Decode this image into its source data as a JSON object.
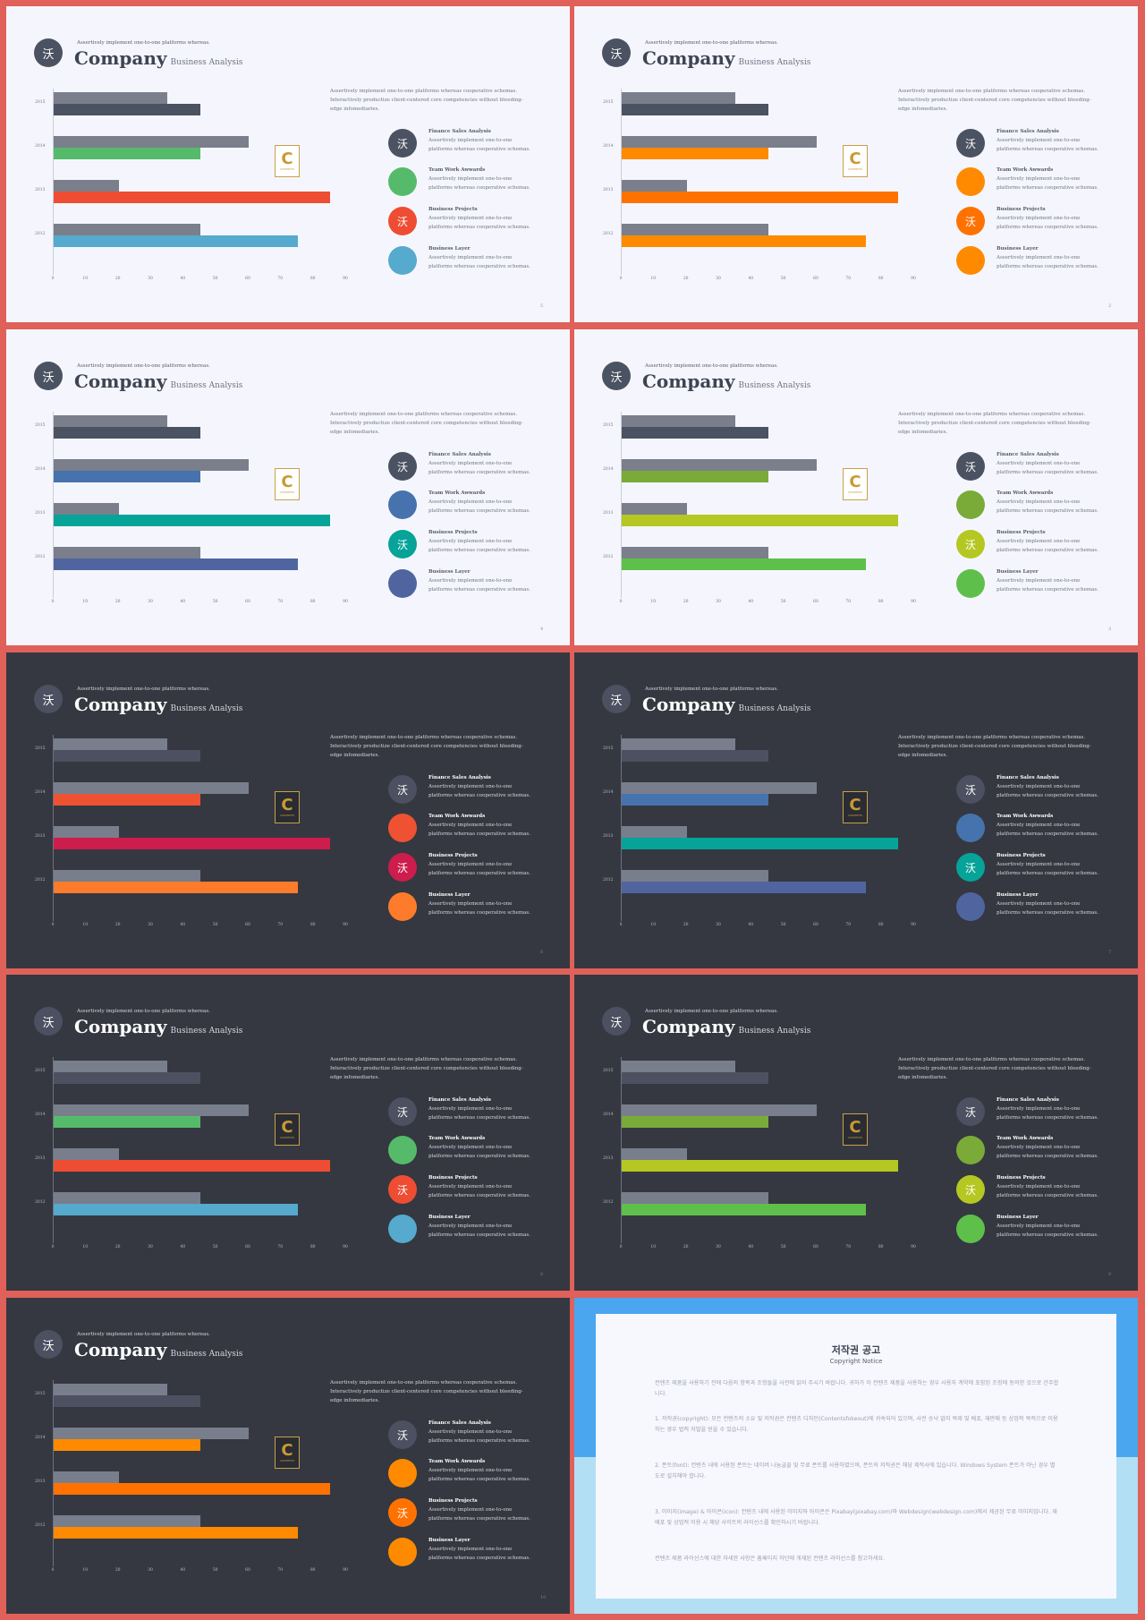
{
  "slide_template": {
    "header_icon": "沃",
    "subtitle": "Assertively implement one-to-one platforms whereas.",
    "title": "Company",
    "title_tag": "Business Analysis",
    "description": "Assertively implement one-to-one platforms whereas cooperative schemas. Interactively productize client-centered core competencies without bleeding-edge infomediaries.",
    "legend_titles": [
      "Finance Sales Analysis",
      "Team Work Awwards",
      "Business Projects",
      "Business Layer"
    ],
    "legend_desc": "Assertively implement one-to-one platforms whereas cooperative schemas.",
    "legend_icon_marks": [
      "沃",
      "",
      "沃",
      ""
    ],
    "logo_letter": "C",
    "logo_text": "CONTENTS"
  },
  "chart_data": {
    "type": "bar",
    "orientation": "horizontal",
    "categories": [
      "2015",
      "2014",
      "2013",
      "2012"
    ],
    "series": [
      {
        "values": [
          35,
          60,
          20,
          45
        ]
      },
      {
        "values": [
          45,
          45,
          85,
          75
        ]
      }
    ],
    "xticks": [
      "0",
      "10",
      "20",
      "30",
      "40",
      "50",
      "60",
      "70",
      "80",
      "90"
    ],
    "xlim": [
      0,
      90
    ]
  },
  "slides": [
    {
      "theme": "light",
      "page": "5",
      "grey": "#7a7f8b",
      "colors": [
        "#4b5261",
        "#55bb6a",
        "#ee4d33",
        "#55aacd"
      ]
    },
    {
      "theme": "light",
      "page": "2",
      "grey": "#7a7f8b",
      "colors": [
        "#4b5261",
        "#ff8a00",
        "#ff7200",
        "#ff8a00"
      ]
    },
    {
      "theme": "light",
      "page": "4",
      "grey": "#7a7f8b",
      "colors": [
        "#4b5261",
        "#4673ad",
        "#06a399",
        "#5065a0"
      ]
    },
    {
      "theme": "light",
      "page": "3",
      "grey": "#7a7f8b",
      "colors": [
        "#4b5261",
        "#7aab38",
        "#b5c722",
        "#5ec04a"
      ]
    },
    {
      "theme": "dark",
      "page": "6",
      "grey": "#787e8c",
      "colors": [
        "#4c5060",
        "#ee5232",
        "#cd1d4d",
        "#ff7b2c"
      ]
    },
    {
      "theme": "dark",
      "page": "7",
      "grey": "#787e8c",
      "colors": [
        "#4c5060",
        "#4673ad",
        "#06a399",
        "#5065a0"
      ]
    },
    {
      "theme": "dark",
      "page": "8",
      "grey": "#787e8c",
      "colors": [
        "#4c5060",
        "#55bb6a",
        "#ee4d33",
        "#55aacd"
      ]
    },
    {
      "theme": "dark",
      "page": "9",
      "grey": "#787e8c",
      "colors": [
        "#4c5060",
        "#7aab38",
        "#b5c722",
        "#5ec04a"
      ]
    },
    {
      "theme": "dark",
      "page": "10",
      "grey": "#787e8c",
      "colors": [
        "#4c5060",
        "#ff8a00",
        "#ff7200",
        "#ff8a00"
      ]
    }
  ],
  "copyright": {
    "title": "저작권 공고",
    "subtitle": "Copyright Notice",
    "paragraphs": [
      "컨텐츠 제품을 사용하기 전에 다음의 항목과 조항들을 사전에 읽어 주시기 바랍니다. 귀하가 이 컨텐츠 제품을 사용하는 경우 사용자 계약에 포함된 조항에 동의한 것으로 간주합니다.",
      "1. 저작권(copyright): 모든 컨텐츠의 소유 및 저작권은 컨텐츠 디자인(Contentsfokeout)에 귀속되어 있으며, 사전 승낙 없이 복제 및 배포, 재판매 등 상업적 목적으로 이용하는 경우 법적 처벌을 받을 수 있습니다.",
      "2. 폰트(font): 컨텐츠 내에 사용된 폰트는 네이버 나눔글꼴 및 무료 폰트를 사용하였으며, 폰트의 저작권은 해당 제작사에 있습니다. Windows System 폰트가 아닌 경우 별도로 설치해야 합니다.",
      "3. 이미지(image) & 아이콘(icon): 컨텐츠 내에 사용된 이미지와 아이콘은 Pixabay(pixabay.com)와 Webdesign(webdesign.com)에서 제공된 무료 이미지입니다. 재배포 및 상업적 이용 시 해당 사이트의 라이선스를 확인하시기 바랍니다.",
      "컨텐츠 제품 라이선스에 대한 자세한 사항은 홈페이지 하단에 게재된 컨텐츠 라이선스를 참고하세요."
    ]
  }
}
